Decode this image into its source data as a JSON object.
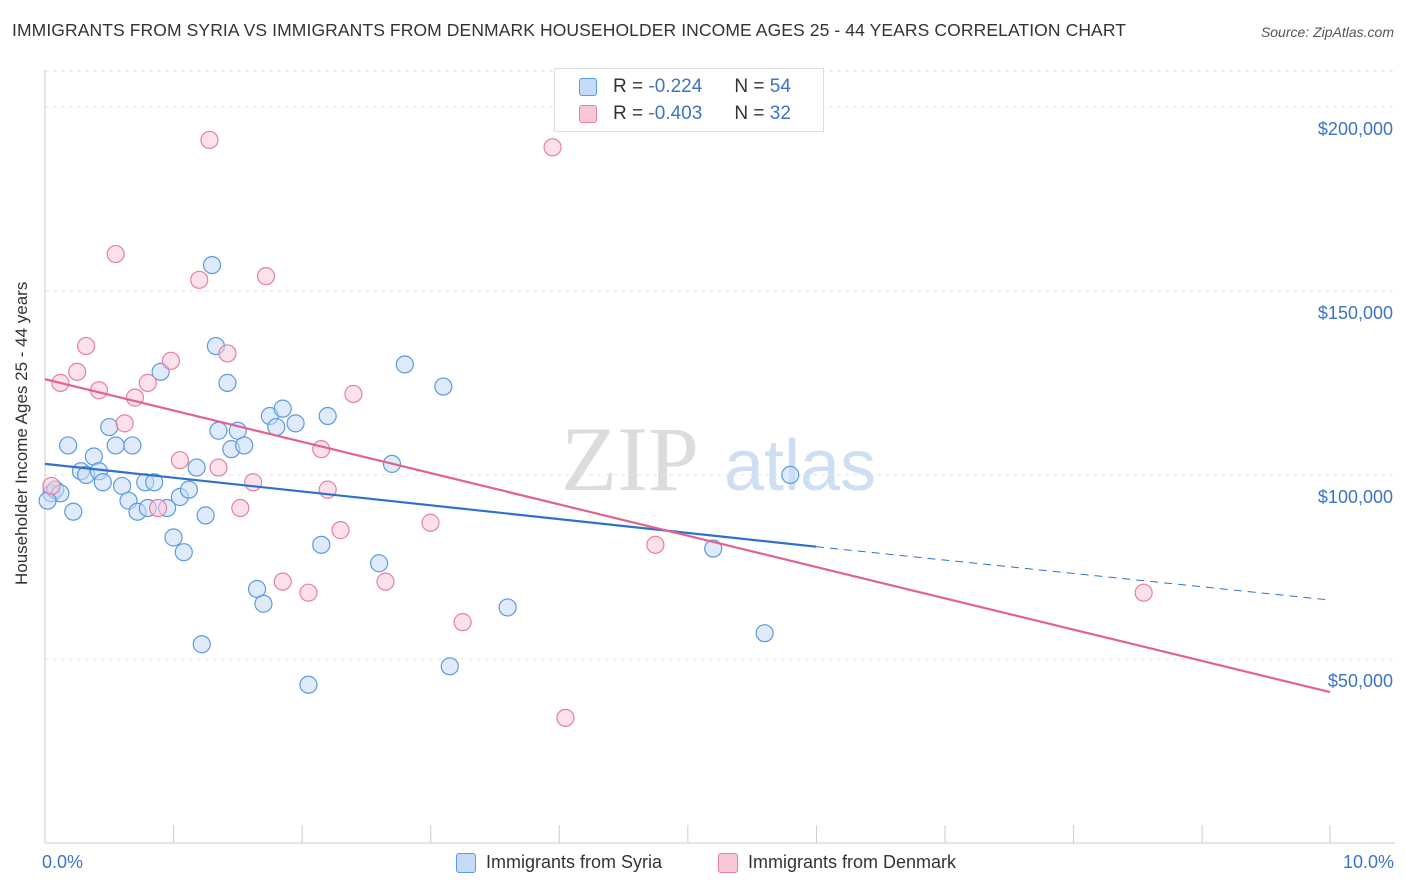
{
  "title": "IMMIGRANTS FROM SYRIA VS IMMIGRANTS FROM DENMARK HOUSEHOLDER INCOME AGES 25 - 44 YEARS CORRELATION CHART",
  "source": "Source: ZipAtlas.com",
  "watermark": {
    "zip": "ZIP",
    "atlas": "atlas"
  },
  "legend": {
    "r_label": "R =",
    "n_label": "N =",
    "rows": [
      {
        "r": "-0.224",
        "n": "54",
        "color": "#5b9bdf",
        "fill": "#c5dbf7"
      },
      {
        "r": "-0.403",
        "n": "32",
        "color": "#e77fa3",
        "fill": "#f9c8d8"
      }
    ]
  },
  "chart_data": {
    "type": "scatter",
    "title": "IMMIGRANTS FROM SYRIA VS IMMIGRANTS FROM DENMARK HOUSEHOLDER INCOME AGES 25 - 44 YEARS CORRELATION CHART",
    "xlabel": "",
    "ylabel": "Householder Income Ages 25 - 44 years",
    "xlim": [
      0,
      10
    ],
    "ylim": [
      0,
      210000
    ],
    "x_tick_labels": [
      "0.0%",
      "10.0%"
    ],
    "y_ticks": [
      50000,
      100000,
      150000,
      200000
    ],
    "y_tick_labels": [
      "$50,000",
      "$100,000",
      "$150,000",
      "$200,000"
    ],
    "grid": true,
    "legend_position": "top-center",
    "series": [
      {
        "name": "Immigrants from Syria",
        "color": "#5b9bdf",
        "points": [
          [
            0.05,
            95000
          ],
          [
            0.08,
            96000
          ],
          [
            0.12,
            95000
          ],
          [
            0.18,
            108000
          ],
          [
            0.22,
            90000
          ],
          [
            0.28,
            101000
          ],
          [
            0.32,
            100000
          ],
          [
            0.38,
            105000
          ],
          [
            0.42,
            101000
          ],
          [
            0.45,
            98000
          ],
          [
            0.5,
            113000
          ],
          [
            0.55,
            108000
          ],
          [
            0.6,
            97000
          ],
          [
            0.65,
            93000
          ],
          [
            0.68,
            108000
          ],
          [
            0.72,
            90000
          ],
          [
            0.78,
            98000
          ],
          [
            0.8,
            91000
          ],
          [
            0.85,
            98000
          ],
          [
            0.9,
            128000
          ],
          [
            0.95,
            91000
          ],
          [
            1.0,
            83000
          ],
          [
            1.05,
            94000
          ],
          [
            1.08,
            79000
          ],
          [
            1.12,
            96000
          ],
          [
            1.18,
            102000
          ],
          [
            1.22,
            54000
          ],
          [
            1.25,
            89000
          ],
          [
            1.3,
            157000
          ],
          [
            1.33,
            135000
          ],
          [
            1.35,
            112000
          ],
          [
            1.42,
            125000
          ],
          [
            1.45,
            107000
          ],
          [
            1.5,
            112000
          ],
          [
            1.55,
            108000
          ],
          [
            1.65,
            69000
          ],
          [
            1.7,
            65000
          ],
          [
            1.75,
            116000
          ],
          [
            1.8,
            113000
          ],
          [
            1.85,
            118000
          ],
          [
            1.95,
            114000
          ],
          [
            2.05,
            43000
          ],
          [
            2.15,
            81000
          ],
          [
            2.2,
            116000
          ],
          [
            2.6,
            76000
          ],
          [
            2.7,
            103000
          ],
          [
            2.8,
            130000
          ],
          [
            3.1,
            124000
          ],
          [
            3.15,
            48000
          ],
          [
            3.6,
            64000
          ],
          [
            5.2,
            80000
          ],
          [
            5.6,
            57000
          ],
          [
            5.8,
            100000
          ],
          [
            0.02,
            93000
          ]
        ]
      },
      {
        "name": "Immigrants from Denmark",
        "color": "#e77fa3",
        "points": [
          [
            0.05,
            97000
          ],
          [
            0.12,
            125000
          ],
          [
            0.25,
            128000
          ],
          [
            0.32,
            135000
          ],
          [
            0.42,
            123000
          ],
          [
            0.55,
            160000
          ],
          [
            0.62,
            114000
          ],
          [
            0.7,
            121000
          ],
          [
            0.8,
            125000
          ],
          [
            0.88,
            91000
          ],
          [
            0.98,
            131000
          ],
          [
            1.05,
            104000
          ],
          [
            1.2,
            153000
          ],
          [
            1.28,
            191000
          ],
          [
            1.35,
            102000
          ],
          [
            1.42,
            133000
          ],
          [
            1.52,
            91000
          ],
          [
            1.62,
            98000
          ],
          [
            1.72,
            154000
          ],
          [
            1.85,
            71000
          ],
          [
            2.05,
            68000
          ],
          [
            2.15,
            107000
          ],
          [
            2.2,
            96000
          ],
          [
            2.3,
            85000
          ],
          [
            2.4,
            122000
          ],
          [
            2.65,
            71000
          ],
          [
            3.0,
            87000
          ],
          [
            3.25,
            60000
          ],
          [
            3.95,
            189000
          ],
          [
            4.05,
            34000
          ],
          [
            4.75,
            81000
          ],
          [
            8.55,
            68000
          ]
        ]
      }
    ],
    "trendlines": [
      {
        "series": "Immigrants from Syria",
        "x": [
          0,
          6.0
        ],
        "y": [
          103000,
          80500
        ],
        "dashed_extension_to": [
          10,
          66000
        ]
      },
      {
        "series": "Immigrants from Denmark",
        "x": [
          0,
          10
        ],
        "y": [
          126000,
          41000
        ]
      }
    ]
  },
  "bottom_legend": [
    {
      "label": "Immigrants from Syria"
    },
    {
      "label": "Immigrants from Denmark"
    }
  ]
}
